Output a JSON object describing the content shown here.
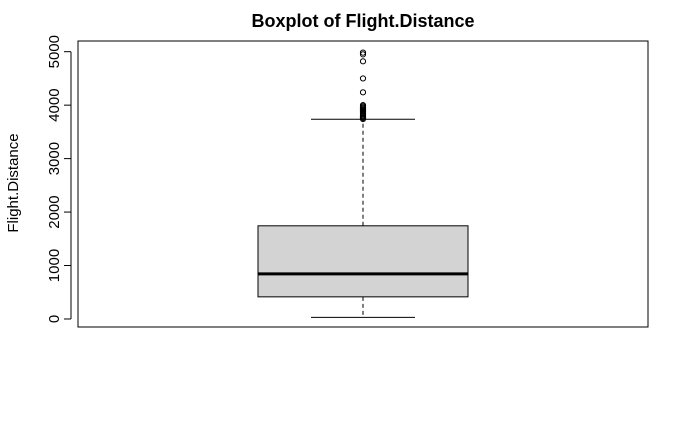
{
  "chart_data": {
    "type": "boxplot",
    "title": "Boxplot of Flight.Distance",
    "xlabel": "",
    "ylabel": "Flight.Distance",
    "ylim": [
      -150,
      5200
    ],
    "yticks": [
      0,
      1000,
      2000,
      3000,
      4000,
      5000
    ],
    "ytick_labels": [
      "0",
      "1000",
      "2000",
      "3000",
      "4000",
      "5000"
    ],
    "grid": false,
    "legend": "none",
    "box": {
      "whisker_low": 31,
      "q1": 414,
      "median": 843,
      "q3": 1743,
      "whisker_high": 3736,
      "fill": "#d3d3d3"
    },
    "outliers": [
      3740,
      3760,
      3780,
      3800,
      3820,
      3840,
      3860,
      3880,
      3900,
      3920,
      3940,
      3960,
      3980,
      4000,
      4240,
      4500,
      4820,
      4950,
      4983
    ]
  }
}
